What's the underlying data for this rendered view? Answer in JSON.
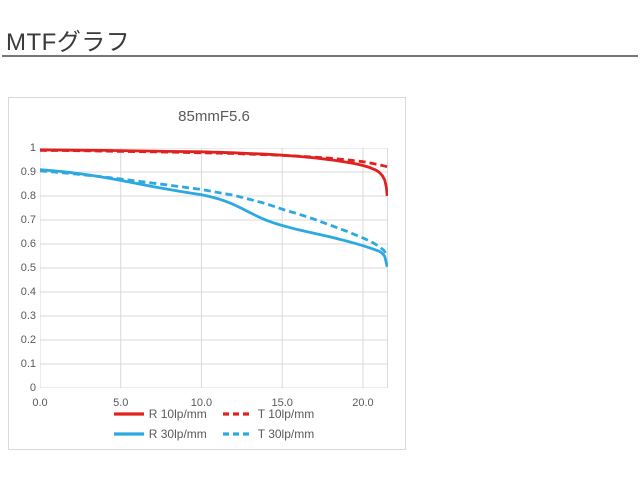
{
  "page": {
    "title": "MTFグラフ"
  },
  "chart_data": {
    "type": "line",
    "title": "85mmF5.6",
    "xlabel": "",
    "ylabel": "",
    "xlim": [
      0,
      21.55
    ],
    "ylim": [
      0,
      1
    ],
    "grid": true,
    "grid_color": "#d9d9d9",
    "label_color": "#595959",
    "legend_position": "bottom",
    "x_ticks": [
      {
        "label": "0.0",
        "value": 0
      },
      {
        "label": "5.0",
        "value": 5
      },
      {
        "label": "10.0",
        "value": 10
      },
      {
        "label": "15.0",
        "value": 15
      },
      {
        "label": "20.0",
        "value": 20
      }
    ],
    "y_ticks": [
      {
        "label": "1",
        "value": 1
      },
      {
        "label": "0.9",
        "value": 0.9
      },
      {
        "label": "0.8",
        "value": 0.8
      },
      {
        "label": "0.7",
        "value": 0.7
      },
      {
        "label": "0.6",
        "value": 0.6
      },
      {
        "label": "0.5",
        "value": 0.5
      },
      {
        "label": "0.4",
        "value": 0.4
      },
      {
        "label": "0.3",
        "value": 0.3
      },
      {
        "label": "0.2",
        "value": 0.2
      },
      {
        "label": "0.1",
        "value": 0.1
      },
      {
        "label": "0",
        "value": 0
      }
    ],
    "series": [
      {
        "name": "R 10lp/mm",
        "color": "#e0211f",
        "dash": false,
        "points": [
          [
            0,
            0.992
          ],
          [
            2,
            0.991
          ],
          [
            4,
            0.99
          ],
          [
            6,
            0.988
          ],
          [
            8,
            0.986
          ],
          [
            10,
            0.984
          ],
          [
            12,
            0.98
          ],
          [
            14,
            0.974
          ],
          [
            15,
            0.97
          ],
          [
            16,
            0.965
          ],
          [
            17,
            0.959
          ],
          [
            18,
            0.951
          ],
          [
            19,
            0.941
          ],
          [
            19.5,
            0.935
          ],
          [
            20,
            0.927
          ],
          [
            20.4,
            0.919
          ],
          [
            20.8,
            0.908
          ],
          [
            21,
            0.899
          ],
          [
            21.2,
            0.885
          ],
          [
            21.35,
            0.866
          ],
          [
            21.45,
            0.835
          ],
          [
            21.5,
            0.8
          ]
        ]
      },
      {
        "name": "T 10lp/mm",
        "color": "#e0211f",
        "dash": true,
        "points": [
          [
            0,
            0.99
          ],
          [
            2,
            0.989
          ],
          [
            4,
            0.987
          ],
          [
            6,
            0.985
          ],
          [
            8,
            0.983
          ],
          [
            10,
            0.98
          ],
          [
            12,
            0.977
          ],
          [
            14,
            0.972
          ],
          [
            15,
            0.969
          ],
          [
            16,
            0.966
          ],
          [
            17,
            0.962
          ],
          [
            18,
            0.957
          ],
          [
            19,
            0.951
          ],
          [
            20,
            0.943
          ],
          [
            20.5,
            0.937
          ],
          [
            21,
            0.93
          ],
          [
            21.5,
            0.922
          ]
        ]
      },
      {
        "name": "R 30lp/mm",
        "color": "#2ba9e0",
        "dash": false,
        "points": [
          [
            0,
            0.91
          ],
          [
            1,
            0.904
          ],
          [
            2,
            0.897
          ],
          [
            3,
            0.888
          ],
          [
            4,
            0.877
          ],
          [
            5,
            0.865
          ],
          [
            6,
            0.852
          ],
          [
            7,
            0.839
          ],
          [
            8,
            0.827
          ],
          [
            9,
            0.816
          ],
          [
            10,
            0.805
          ],
          [
            10.5,
            0.798
          ],
          [
            11,
            0.789
          ],
          [
            11.5,
            0.778
          ],
          [
            12,
            0.764
          ],
          [
            12.5,
            0.748
          ],
          [
            13,
            0.731
          ],
          [
            13.5,
            0.714
          ],
          [
            14,
            0.699
          ],
          [
            14.5,
            0.687
          ],
          [
            15,
            0.677
          ],
          [
            15.5,
            0.668
          ],
          [
            16,
            0.659
          ],
          [
            17,
            0.644
          ],
          [
            18,
            0.629
          ],
          [
            19,
            0.612
          ],
          [
            19.5,
            0.603
          ],
          [
            20,
            0.593
          ],
          [
            20.5,
            0.582
          ],
          [
            21,
            0.57
          ],
          [
            21.2,
            0.561
          ],
          [
            21.35,
            0.548
          ],
          [
            21.5,
            0.505
          ]
        ]
      },
      {
        "name": "T 30lp/mm",
        "color": "#2ba9e0",
        "dash": true,
        "points": [
          [
            0,
            0.905
          ],
          [
            2,
            0.893
          ],
          [
            4,
            0.879
          ],
          [
            6,
            0.862
          ],
          [
            8,
            0.845
          ],
          [
            10,
            0.827
          ],
          [
            12,
            0.803
          ],
          [
            13,
            0.786
          ],
          [
            14,
            0.768
          ],
          [
            15,
            0.745
          ],
          [
            16,
            0.725
          ],
          [
            17,
            0.703
          ],
          [
            18,
            0.678
          ],
          [
            19,
            0.653
          ],
          [
            20,
            0.625
          ],
          [
            20.5,
            0.61
          ],
          [
            21,
            0.59
          ],
          [
            21.3,
            0.573
          ],
          [
            21.5,
            0.553
          ]
        ]
      }
    ]
  }
}
